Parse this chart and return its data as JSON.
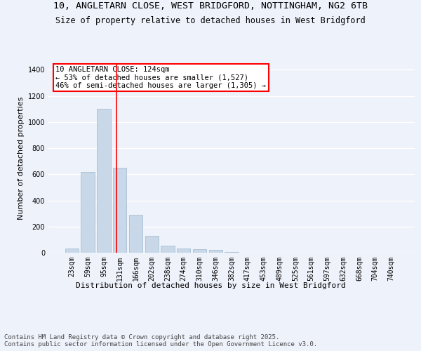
{
  "title1": "10, ANGLETARN CLOSE, WEST BRIDGFORD, NOTTINGHAM, NG2 6TB",
  "title2": "Size of property relative to detached houses in West Bridgford",
  "xlabel": "Distribution of detached houses by size in West Bridgford",
  "ylabel": "Number of detached properties",
  "categories": [
    "23sqm",
    "59sqm",
    "95sqm",
    "131sqm",
    "166sqm",
    "202sqm",
    "238sqm",
    "274sqm",
    "310sqm",
    "346sqm",
    "382sqm",
    "417sqm",
    "453sqm",
    "489sqm",
    "525sqm",
    "561sqm",
    "597sqm",
    "632sqm",
    "668sqm",
    "704sqm",
    "740sqm"
  ],
  "values": [
    30,
    620,
    1100,
    650,
    290,
    130,
    55,
    30,
    25,
    20,
    5,
    0,
    0,
    0,
    0,
    0,
    0,
    0,
    0,
    0,
    0
  ],
  "bar_color": "#c8d8e8",
  "bar_edge_color": "#a0b8cc",
  "vline_color": "red",
  "vline_x_data": 2.806,
  "annotation_text": "10 ANGLETARN CLOSE: 124sqm\n← 53% of detached houses are smaller (1,527)\n46% of semi-detached houses are larger (1,305) →",
  "annotation_box_color": "white",
  "annotation_box_edge_color": "red",
  "ylim": [
    0,
    1450
  ],
  "yticks": [
    0,
    200,
    400,
    600,
    800,
    1000,
    1200,
    1400
  ],
  "background_color": "#eef2fb",
  "grid_color": "white",
  "footer1": "Contains HM Land Registry data © Crown copyright and database right 2025.",
  "footer2": "Contains public sector information licensed under the Open Government Licence v3.0.",
  "title1_fontsize": 9.5,
  "title2_fontsize": 8.5,
  "xlabel_fontsize": 8,
  "ylabel_fontsize": 8,
  "tick_fontsize": 7,
  "annotation_fontsize": 7.5,
  "footer_fontsize": 6.5
}
